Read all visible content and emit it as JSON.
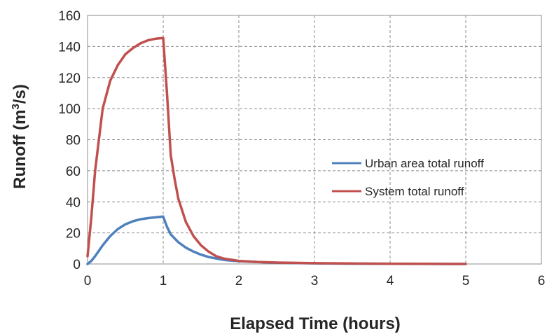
{
  "chart_data": {
    "type": "line",
    "title": "",
    "xlabel": "Elapsed Time (hours)",
    "ylabel_main": "Runoff (m",
    "ylabel_sup": "3",
    "ylabel_end": "/s)",
    "xlim": [
      0,
      6
    ],
    "ylim": [
      0,
      160
    ],
    "xticks": [
      0,
      1,
      2,
      3,
      4,
      5,
      6
    ],
    "yticks": [
      0,
      20,
      40,
      60,
      80,
      100,
      120,
      140,
      160
    ],
    "grid": true,
    "legend_position": "right",
    "series": [
      {
        "name": "Urban area total runoff",
        "color": "#4f81bd",
        "x": [
          0,
          0.05,
          0.1,
          0.2,
          0.3,
          0.4,
          0.5,
          0.6,
          0.7,
          0.8,
          0.9,
          1.0,
          1.05,
          1.1,
          1.2,
          1.3,
          1.4,
          1.5,
          1.6,
          1.7,
          1.8,
          2.0,
          2.25,
          2.5,
          3.0,
          3.5,
          4.0,
          4.5,
          5.0
        ],
        "y": [
          0,
          2,
          5,
          12,
          18,
          22.5,
          25.5,
          27.5,
          28.8,
          29.5,
          30,
          30.5,
          24,
          19,
          14,
          10.5,
          8,
          6,
          4.5,
          3.5,
          2.6,
          1.8,
          1.2,
          0.8,
          0.4,
          0.2,
          0.1,
          0.05,
          0
        ]
      },
      {
        "name": "System total runoff",
        "color": "#c0504d",
        "x": [
          0,
          0.05,
          0.1,
          0.2,
          0.3,
          0.4,
          0.5,
          0.6,
          0.7,
          0.8,
          0.9,
          1.0,
          1.05,
          1.1,
          1.15,
          1.2,
          1.3,
          1.4,
          1.5,
          1.6,
          1.7,
          1.8,
          2.0,
          2.25,
          2.5,
          3.0,
          3.5,
          4.0,
          4.5,
          5.0
        ],
        "y": [
          5,
          30,
          60,
          100,
          118,
          128,
          135,
          139,
          142,
          144,
          145,
          145.5,
          110,
          70,
          55,
          42,
          27,
          18,
          12,
          8,
          5,
          3.5,
          2,
          1.3,
          0.9,
          0.5,
          0.3,
          0.2,
          0.1,
          0
        ]
      }
    ]
  }
}
